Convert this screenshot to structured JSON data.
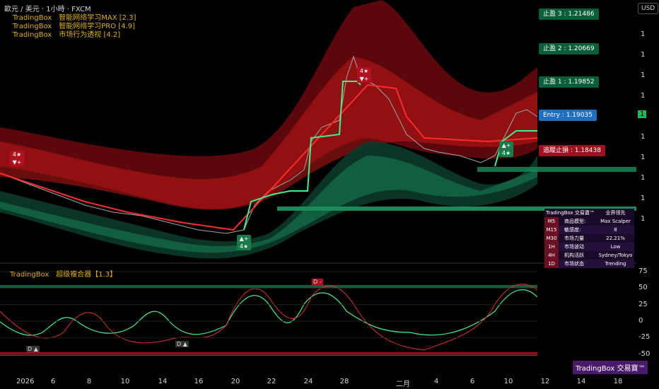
{
  "header": {
    "symbol": "歐元 / 美元 · 1小時 · FXCM",
    "indicators": [
      "TradingBox　智能网络学习MAX [2.3]",
      "TradingBox　智能网络学习PRO [4.9]",
      "TradingBox　市场行为透视 [4.2]"
    ],
    "currency_button": "USD"
  },
  "price_tags": [
    {
      "label": "止盈 3 : 1.21486",
      "color": "#0b5e3a"
    },
    {
      "label": "止盈 2 : 1.20669",
      "color": "#0b5e3a"
    },
    {
      "label": "止盈 1 : 1.19852",
      "color": "#0b5e3a"
    },
    {
      "label": "Entry : 1.19035",
      "color": "#1e6fc0"
    },
    {
      "label": "追蹤止損 : 1.18438",
      "color": "#a01020"
    }
  ],
  "price_axis": {
    "labels": [
      "1",
      "1",
      "1",
      "1",
      "1",
      "1",
      "1",
      "1",
      "1",
      "1"
    ],
    "current_badge": "1"
  },
  "signals": [
    {
      "top": "4★",
      "bottom": "▼+",
      "color": "#b01020"
    },
    {
      "top": "4★",
      "bottom": "▼+",
      "color": "#b01020"
    },
    {
      "top": "▲+",
      "bottom": "4★",
      "color": "#1a7a4a"
    },
    {
      "top": "▲+",
      "bottom": "4★",
      "color": "#1a7a4a"
    }
  ],
  "info_table": {
    "title": "TradingBox 交易寶™",
    "badge": "业界领先",
    "rows": [
      [
        "M5",
        "商品模型:",
        "Max Scalper"
      ],
      [
        "M15",
        "敏感度:",
        "8"
      ],
      [
        "M30",
        "市场力量",
        "22.21%"
      ],
      [
        "1H",
        "市场波动",
        "Low"
      ],
      [
        "4H",
        "机构活跃",
        "Sydney/Tokyo"
      ],
      [
        "1D",
        "市场状态",
        "Trending"
      ]
    ]
  },
  "oscillator": {
    "title": "TradingBox　超级複合器【1.3】",
    "ylim": [
      -60,
      80
    ],
    "yticks": [
      75,
      50,
      25,
      0,
      -25,
      -50
    ],
    "markers": [
      "D -",
      "D ▲",
      "D ▲"
    ]
  },
  "x_axis": {
    "labels": [
      "2026",
      "6",
      "8",
      "10",
      "14",
      "16",
      "20",
      "22",
      "24",
      "28",
      "二月",
      "4",
      "6",
      "10",
      "12",
      "14",
      "18"
    ]
  },
  "watermark": "TradingBox 交易寶™"
}
